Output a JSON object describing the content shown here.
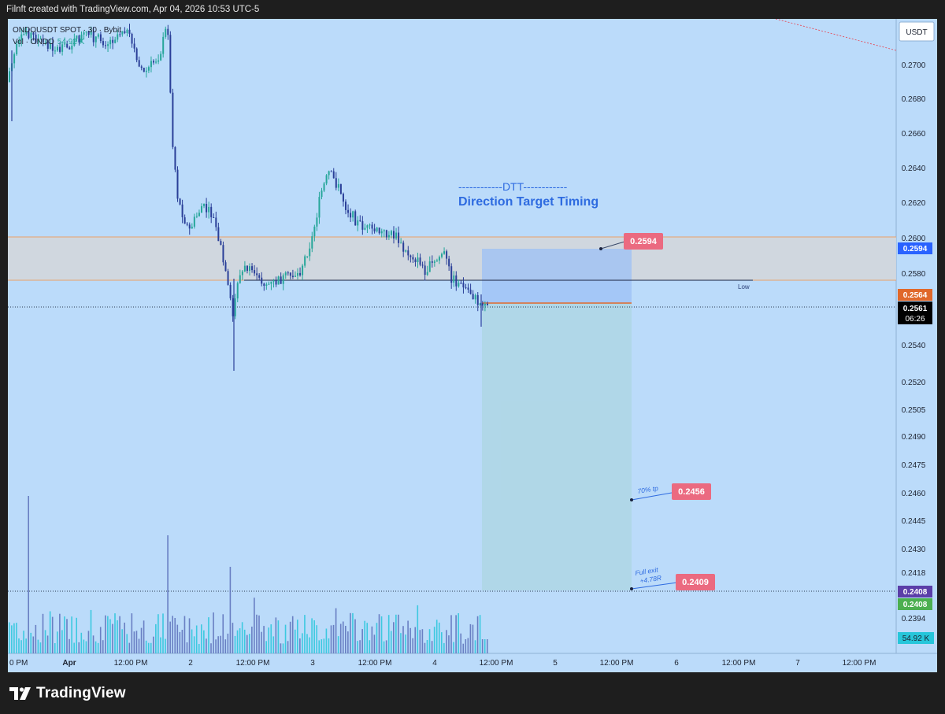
{
  "header": {
    "caption": "Filnft created with TradingView.com, Apr 04, 2026 10:53 UTC-5"
  },
  "legend": {
    "symbol_line": "ONDOUSDT SPOT · 30 · Bybit",
    "vol_label": "Vol · ONDO",
    "vol_value": "54.92 K"
  },
  "currency_button": "USDT",
  "annotations": {
    "dtt_line": "------------DTT------------",
    "dtt_subtitle": "Direction Target Timing",
    "low_label": "Low",
    "tp70_label": "70% tp",
    "full_exit_label": "Full exit",
    "full_exit_r": "+4.78R"
  },
  "price_tags": {
    "target_top": "0.2594",
    "tp70": "0.2456",
    "full_exit": "0.2409"
  },
  "axis_badges": {
    "zone_top": "0.2594",
    "entry": "0.2564",
    "last_price": "0.2561",
    "countdown": "06:26",
    "stop_purple": "0.2408",
    "stop_green": "0.2408",
    "volume": "54.92 K"
  },
  "chart_data": {
    "type": "candlestick",
    "symbol": "ONDOUSDT SPOT",
    "interval": "30",
    "exchange": "Bybit",
    "price_axis_ticks": [
      "0.2700",
      "0.2680",
      "0.2660",
      "0.2640",
      "0.2620",
      "0.2600",
      "0.2580",
      "0.2540",
      "0.2520",
      "0.2505",
      "0.2490",
      "0.2475",
      "0.2460",
      "0.2445",
      "0.2430",
      "0.2418",
      "0.2394"
    ],
    "time_axis_ticks": [
      "0 PM",
      "Apr",
      "12:00 PM",
      "2",
      "12:00 PM",
      "3",
      "12:00 PM",
      "4",
      "12:00 PM",
      "5",
      "12:00 PM",
      "6",
      "12:00 PM",
      "7",
      "12:00 PM"
    ],
    "last_price": 0.2561,
    "resistance_zone": [
      0.2576,
      0.2601
    ],
    "low_line": 0.2576,
    "short_position": {
      "entry": 0.2564,
      "stop": 0.2594,
      "target_70": 0.2456,
      "target_full": 0.2409
    },
    "closes_sample": [
      0.269,
      0.2705,
      0.266,
      0.256,
      0.261,
      0.2555,
      0.26,
      0.264,
      0.2598,
      0.259,
      0.2575,
      0.2561
    ],
    "volume_last": "54.92 K",
    "colors": {
      "background": "#bbdbfa",
      "up": "#26a69a",
      "down": "#2a3f98",
      "zone": "#cfd3dc",
      "tag": "#eb6a80"
    }
  }
}
